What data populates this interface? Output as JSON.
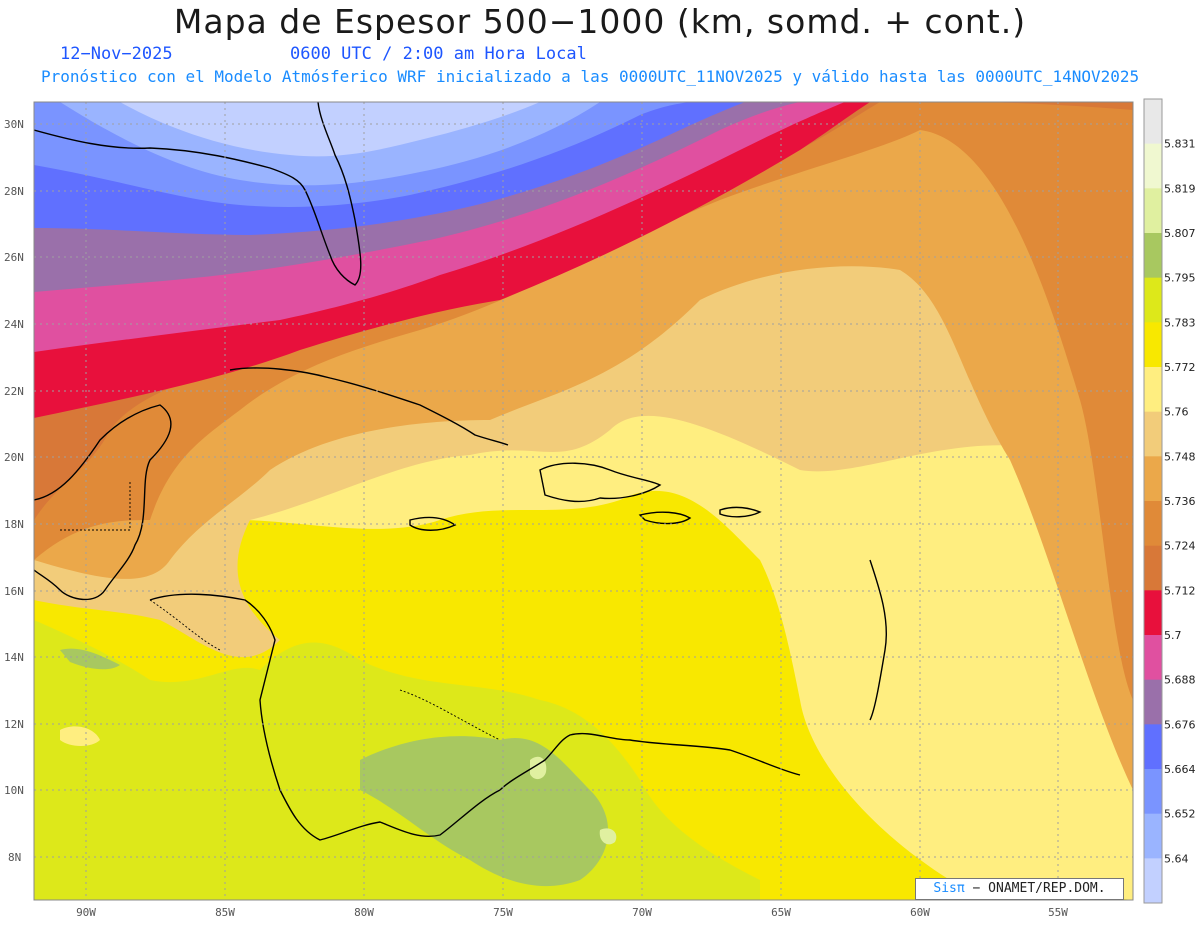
{
  "header": {
    "title": "Mapa de Espesor 500−1000 (km, somd. + cont.)",
    "date": "12−Nov−2025",
    "time": "0600 UTC / 2:00 am Hora Local",
    "forecast_note": "Pronóstico con el Modelo Atmósferico WRF inicializado a las 0000UTC_11NOV2025 y válido hasta las  0000UTC_14NOV2025"
  },
  "axes": {
    "lat_labels": [
      "30N",
      "28N",
      "26N",
      "24N",
      "22N",
      "20N",
      "18N",
      "16N",
      "14N",
      "12N",
      "10N",
      "8N"
    ],
    "lon_labels": [
      "90W",
      "85W",
      "80W",
      "75W",
      "70W",
      "65W",
      "60W",
      "55W"
    ],
    "extent": {
      "lon_min": -92,
      "lon_max": -52.5,
      "lat_min": 6.7,
      "lat_max": 30.7
    }
  },
  "legend": {
    "labels": [
      "5.831",
      "5.819",
      "5.807",
      "5.795",
      "5.783",
      "5.772",
      "5.76",
      "5.748",
      "5.736",
      "5.724",
      "5.712",
      "5.7",
      "5.688",
      "5.676",
      "5.664",
      "5.652",
      "5.64"
    ],
    "colors": [
      "#e8e8e8",
      "#f0f8d0",
      "#e0f0a0",
      "#a8c860",
      "#dde81a",
      "#f8e800",
      "#ffee80",
      "#f2cc7a",
      "#eba84a",
      "#e08a38",
      "#d87838",
      "#e8103c",
      "#e050a0",
      "#9a70aa",
      "#6070ff",
      "#7a94ff",
      "#9ab4ff",
      "#c2d0ff"
    ]
  },
  "credit": {
    "logo": "Sisπ",
    "text": "− ONAMET/REP.DOM."
  }
}
